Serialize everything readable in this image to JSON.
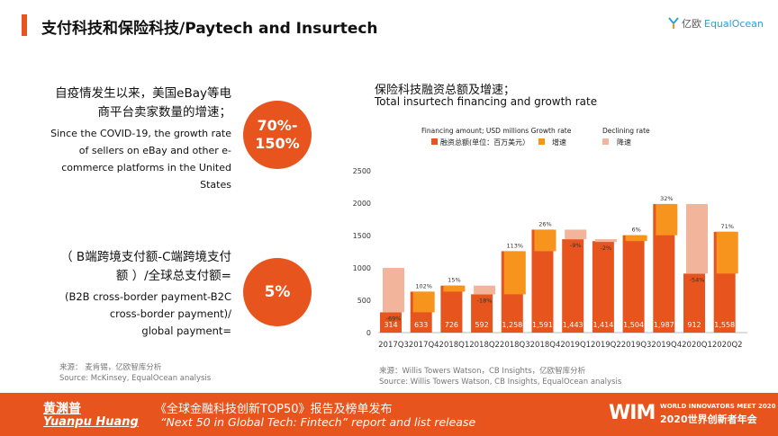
{
  "header": {
    "title": "支付科技和保险科技/Paytech and Insurtech",
    "logo_cn": "亿欧",
    "logo_en": "EqualOcean"
  },
  "stat1": {
    "cn_lines": [
      "自疫情发生以来，美国eBay等电",
      "商平台卖家数量的增速；"
    ],
    "en_lines": [
      "Since the COVID-19, the growth rate",
      "of sellers on eBay and other e-",
      "commerce platforms in the United",
      "States"
    ],
    "value_lines": [
      "70%-",
      "150%"
    ],
    "source_cn": "来源： 麦肯锡，亿欧智库分析",
    "source_en": "Source: McKinsey, EqualOcean analysis"
  },
  "stat2": {
    "cn_lines": [
      "（ B端跨境支付额-C端跨境支付",
      "额 ）/全球总支付额="
    ],
    "en_lines": [
      "(B2B cross-border payment-B2C",
      "cross-border payment)/",
      "global payment="
    ],
    "value": "5%"
  },
  "chart_header": {
    "title_cn": "保险科技融资总额及增速；",
    "title_en": "Total insurtech financing and growth rate"
  },
  "chart_source": {
    "cn": "来源：Willis Towers Watson，CB Insights，亿欧智库分析",
    "en": "Source: Willis Towers Watson, CB Insights, EqualOcean analysis"
  },
  "chart_data": {
    "type": "bar",
    "categories": [
      "2017Q3",
      "2017Q4",
      "2018Q1",
      "2018Q2",
      "2018Q3",
      "2018Q4",
      "2019Q1",
      "2019Q2",
      "2019Q3",
      "2019Q4",
      "2020Q1",
      "2020Q2"
    ],
    "series": [
      {
        "name": "融资总额(单位：百万美元）",
        "values": [
          314,
          633,
          726,
          592,
          1258,
          1591,
          1443,
          1414,
          1504,
          1987,
          912,
          1558
        ]
      }
    ],
    "value_labels": [
      "314",
      "633",
      "726",
      "592",
      "1,258",
      "1,591",
      "1,443",
      "1,414",
      "1,504",
      "1,987",
      "912",
      "1,558"
    ],
    "growth_rate": {
      "labels": [
        "-69%",
        "102%",
        "15%",
        "-18%",
        "113%",
        "26%",
        "-9%",
        "-2%",
        "6%",
        "32%",
        "-54%",
        "71%"
      ],
      "from": [
        1000,
        314,
        633,
        726,
        592,
        1258,
        1591,
        1443,
        1414,
        1504,
        1987,
        912
      ],
      "to": [
        314,
        633,
        726,
        592,
        1258,
        1591,
        1443,
        1414,
        1504,
        1987,
        912,
        1558
      ]
    },
    "legend": {
      "title_left": "Financing amount; USD millions Growth rate",
      "title_right": "Declining rate",
      "financing": "融资总额(单位：百万美元）",
      "growth": "增速",
      "decline": "降速",
      "position": "top"
    },
    "yticks": [
      0,
      500,
      1000,
      1500,
      2000,
      2500
    ],
    "ylim": [
      0,
      2500
    ],
    "grid": false,
    "colors": {
      "financing": "#e8541e",
      "growth": "#f7941d",
      "decline": "#f2b49a"
    }
  },
  "footer": {
    "name_cn": "黄渊普",
    "name_en": "Yuanpu Huang",
    "title_cn": "《全球金融科技创新TOP50》报告及榜单发布",
    "title_en": "“Next 50 in Global Tech: Fintech”   report and list release",
    "brand": "WIM",
    "brand_sub_en": "WORLD INNOVATORS MEET 2020",
    "brand_sub_cn": "2020世界创新者年会"
  }
}
